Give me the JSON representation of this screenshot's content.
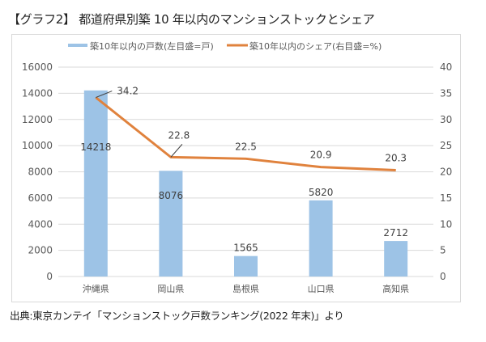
{
  "title": "【グラフ2】 都道府県別築 10 年以内のマンションストックとシェア",
  "source": "出典:東京カンテイ「マンションストック戸数ランキング(2022 年末)」より",
  "colors": {
    "bar": "#9DC3E6",
    "line": "#E0823D",
    "grid": "#d9d9d9",
    "leader": "#404040"
  },
  "chart_data": {
    "type": "bar",
    "title": "【グラフ2】 都道府県別築 10 年以内のマンションストックとシェア",
    "categories": [
      "沖縄県",
      "岡山県",
      "島根県",
      "山口県",
      "高知県"
    ],
    "series": [
      {
        "name": "築10年以内の戸数(左目盛=戸)",
        "type": "bar",
        "axis": "left",
        "values": [
          14218,
          8076,
          1565,
          5820,
          2712
        ]
      },
      {
        "name": "築10年以内のシェア(右目盛=%)",
        "type": "line",
        "axis": "right",
        "values": [
          34.2,
          22.8,
          22.5,
          20.9,
          20.3
        ]
      }
    ],
    "y_left": {
      "range": [
        0,
        16000
      ],
      "ticks": [
        0,
        2000,
        4000,
        6000,
        8000,
        10000,
        12000,
        14000,
        16000
      ],
      "label": ""
    },
    "y_right": {
      "range": [
        0,
        40
      ],
      "ticks": [
        0,
        5,
        10,
        15,
        20,
        25,
        30,
        35,
        40
      ],
      "label": ""
    },
    "xlabel": "",
    "grid": true,
    "legend": "top"
  }
}
